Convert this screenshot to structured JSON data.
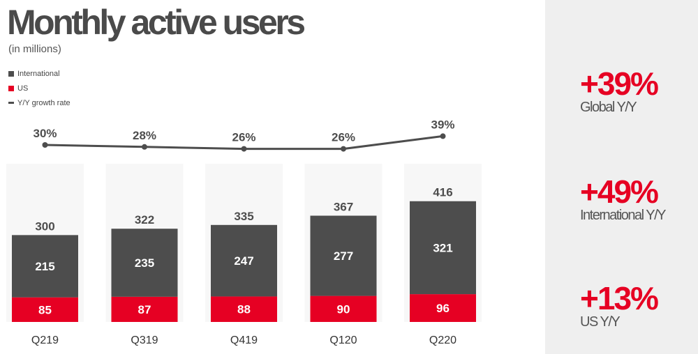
{
  "header": {
    "title": "Monthly active users",
    "subtitle": "(in millions)"
  },
  "legend": [
    {
      "label": "International",
      "color": "#4d4d4d",
      "kind": "box"
    },
    {
      "label": "US",
      "color": "#e60023",
      "kind": "box"
    },
    {
      "label": "Y/Y growth rate",
      "color": "#4d4d4d",
      "kind": "line"
    }
  ],
  "colors": {
    "international": "#4d4d4d",
    "us": "#e60023",
    "growth_line": "#4d4d4d",
    "total_label": "#4d4d4d",
    "side_panel": "#efefef",
    "accent": "#e60023"
  },
  "chart_data": {
    "type": "bar",
    "stacked": true,
    "categories": [
      "Q219",
      "Q319",
      "Q419",
      "Q120",
      "Q220"
    ],
    "series": [
      {
        "name": "US",
        "values": [
          85,
          87,
          88,
          90,
          96
        ]
      },
      {
        "name": "International",
        "values": [
          215,
          235,
          247,
          277,
          321
        ]
      }
    ],
    "totals": [
      300,
      322,
      335,
      367,
      416
    ],
    "growth_rate": {
      "name": "Y/Y growth rate",
      "values": [
        30,
        28,
        26,
        26,
        39
      ],
      "labels": [
        "30%",
        "28%",
        "26%",
        "26%",
        "39%"
      ]
    },
    "title": "Monthly active users",
    "ylabel": "(in millions)"
  },
  "summary": [
    {
      "value": "+39%",
      "label": "Global Y/Y"
    },
    {
      "value": "+49%",
      "label": "International Y/Y"
    },
    {
      "value": "+13%",
      "label": "US Y/Y"
    }
  ]
}
